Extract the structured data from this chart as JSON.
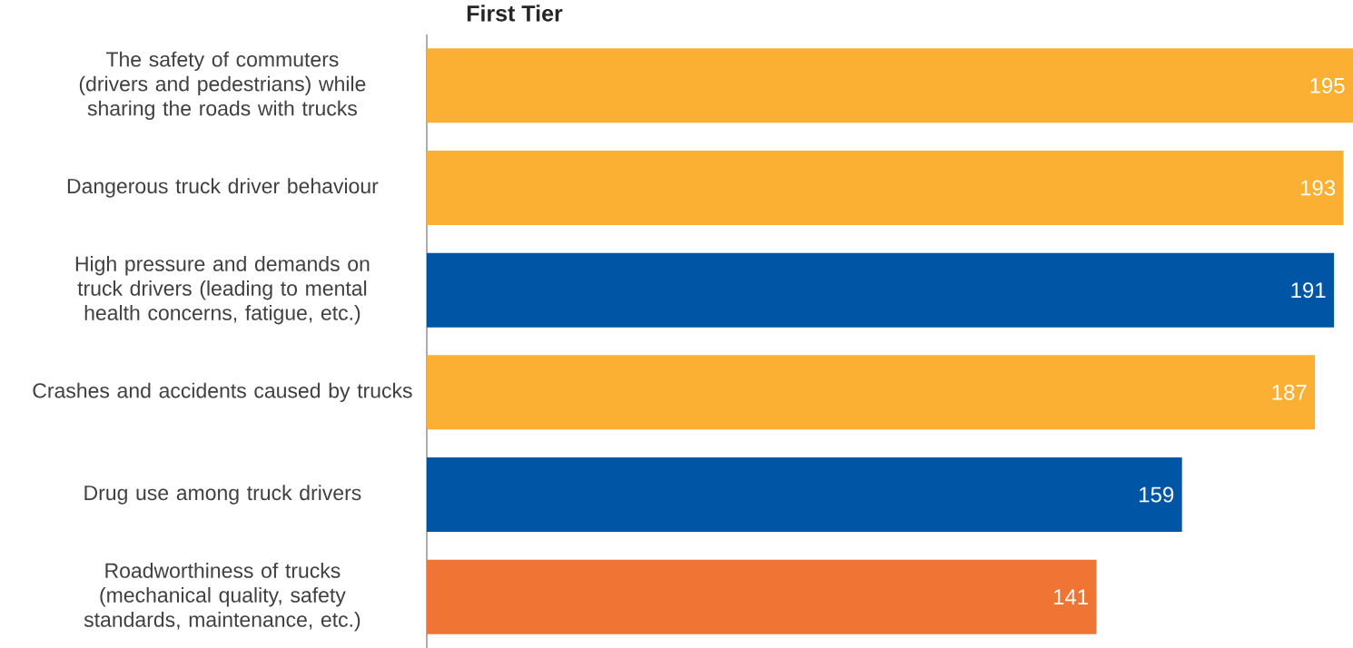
{
  "chart_data": {
    "type": "bar",
    "orientation": "horizontal",
    "title": "First Tier",
    "categories": [
      "The safety of commuters (drivers and pedestrians) while sharing the roads with trucks",
      "Dangerous truck driver behaviour",
      "High pressure and demands on truck drivers (leading to mental health concerns, fatigue, etc.)",
      "Crashes and accidents caused by trucks",
      "Drug use among truck drivers",
      "Roadworthiness of trucks (mechanical quality, safety standards, maintenance, etc.)"
    ],
    "values": [
      195,
      193,
      191,
      187,
      159,
      141
    ],
    "colors": [
      "#fbb034",
      "#fbb034",
      "#0055a4",
      "#fbb034",
      "#0055a4",
      "#f07534"
    ],
    "data_labels": true
  }
}
